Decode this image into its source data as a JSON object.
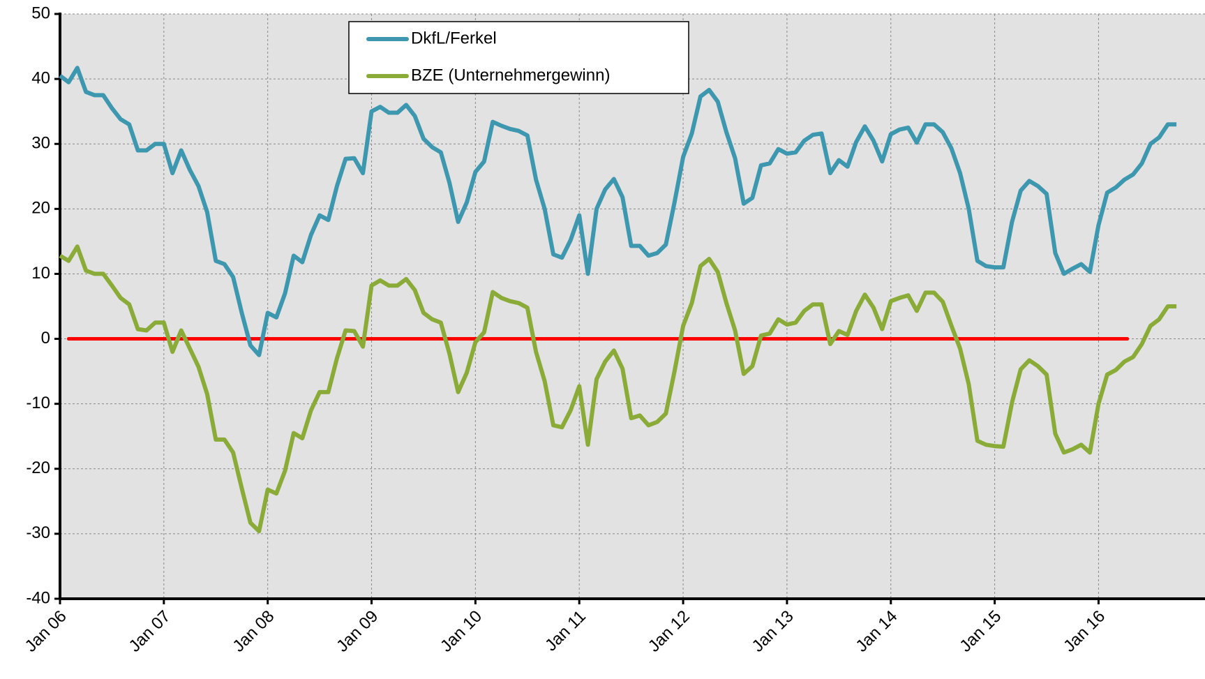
{
  "chart_data": {
    "type": "line",
    "categories": [
      "Jan 06",
      null,
      null,
      null,
      null,
      null,
      null,
      null,
      null,
      null,
      null,
      null,
      "Jan 07",
      null,
      null,
      null,
      null,
      null,
      null,
      null,
      null,
      null,
      null,
      null,
      "Jan 08",
      null,
      null,
      null,
      null,
      null,
      null,
      null,
      null,
      null,
      null,
      null,
      "Jan 09",
      null,
      null,
      null,
      null,
      null,
      null,
      null,
      null,
      null,
      null,
      null,
      "Jan 10",
      null,
      null,
      null,
      null,
      null,
      null,
      null,
      null,
      null,
      null,
      null,
      "Jan 11",
      null,
      null,
      null,
      null,
      null,
      null,
      null,
      null,
      null,
      null,
      null,
      "Jan 12",
      null,
      null,
      null,
      null,
      null,
      null,
      null,
      null,
      null,
      null,
      null,
      "Jan 13",
      null,
      null,
      null,
      null,
      null,
      null,
      null,
      null,
      null,
      null,
      null,
      "Jan 14",
      null,
      null,
      null,
      null,
      null,
      null,
      null,
      null,
      null,
      null,
      null,
      "Jan 15",
      null,
      null,
      null,
      null,
      null,
      null,
      null,
      null,
      null,
      null,
      null,
      "Jan 16",
      null,
      null,
      null,
      null,
      null,
      null,
      null,
      null,
      null
    ],
    "series": [
      {
        "name": "DkfL/Ferkel",
        "color": "#3d97ae",
        "values": [
          40.5,
          39.5,
          41.7,
          38,
          37.5,
          37.5,
          35.5,
          33.8,
          33,
          29,
          29,
          30,
          30,
          25.5,
          29,
          26,
          23.5,
          19.5,
          12,
          11.5,
          9.5,
          4,
          -1,
          -2.5,
          4,
          3.3,
          7,
          12.8,
          11.8,
          16,
          19,
          18.3,
          23.5,
          27.7,
          27.8,
          25.5,
          35,
          35.7,
          34.8,
          34.8,
          36,
          34.3,
          30.8,
          29.5,
          28.7,
          24,
          18,
          21,
          25.7,
          27.3,
          33.4,
          32.8,
          32.3,
          32,
          31.3,
          24.5,
          20,
          13,
          12.5,
          15.2,
          19,
          10,
          20,
          23,
          24.6,
          21.8,
          14.3,
          14.3,
          12.8,
          13.2,
          14.5,
          21,
          28,
          31.6,
          37.3,
          38.3,
          36.5,
          31.8,
          27.8,
          20.8,
          21.7,
          26.7,
          27,
          29.2,
          28.5,
          28.7,
          30.5,
          31.4,
          31.6,
          25.5,
          27.5,
          26.5,
          30.3,
          32.7,
          30.5,
          27.3,
          31.5,
          32.2,
          32.5,
          30.2,
          33,
          33,
          31.8,
          29.3,
          25.5,
          20,
          12,
          11.2,
          11,
          11,
          18,
          22.8,
          24.3,
          23.5,
          22.3,
          13.2,
          10,
          10.8,
          11.5,
          10.3,
          17.5,
          22.5,
          23.3,
          24.5,
          25.3,
          27,
          30,
          31,
          33,
          33
        ]
      },
      {
        "name": "BZE (Unternehmergewinn)",
        "color": "#8aab37",
        "values": [
          12.8,
          12,
          14.2,
          10.5,
          10,
          10,
          8.2,
          6.3,
          5.3,
          1.5,
          1.3,
          2.5,
          2.5,
          -2,
          1.3,
          -1.5,
          -4.3,
          -8.5,
          -15.5,
          -15.5,
          -17.5,
          -23,
          -28.3,
          -29.6,
          -23.2,
          -23.8,
          -20.3,
          -14.5,
          -15.3,
          -11,
          -8.2,
          -8.2,
          -3,
          1.3,
          1.2,
          -1.2,
          8.2,
          9,
          8.2,
          8.2,
          9.2,
          7.5,
          4,
          3,
          2.5,
          -2.3,
          -8.2,
          -5.2,
          -0.5,
          1,
          7.2,
          6.3,
          5.8,
          5.5,
          4.8,
          -2,
          -6.5,
          -13.3,
          -13.6,
          -11,
          -7.3,
          -16.3,
          -6.2,
          -3.5,
          -1.8,
          -4.6,
          -12.2,
          -11.8,
          -13.3,
          -12.8,
          -11.5,
          -5,
          2,
          5.5,
          11.2,
          12.3,
          10.3,
          5.5,
          1.3,
          -5.4,
          -4.2,
          0.5,
          0.8,
          3,
          2.2,
          2.5,
          4.3,
          5.3,
          5.3,
          -0.8,
          1.2,
          0.6,
          4.3,
          6.8,
          4.8,
          1.5,
          5.8,
          6.3,
          6.7,
          4.3,
          7.1,
          7.1,
          5.7,
          2,
          -1.5,
          -7,
          -15.7,
          -16.3,
          -16.5,
          -16.6,
          -9.8,
          -4.7,
          -3.3,
          -4.2,
          -5.5,
          -14.6,
          -17.5,
          -17,
          -16.3,
          -17.5,
          -10,
          -5.5,
          -4.8,
          -3.5,
          -2.8,
          -0.8,
          2,
          3,
          5,
          5
        ]
      }
    ],
    "hline": {
      "value": 0,
      "color": "#ff0000"
    },
    "ylim": [
      -40,
      50
    ],
    "yticks": [
      -40,
      -30,
      -20,
      -10,
      0,
      10,
      20,
      30,
      40,
      50
    ],
    "grid": true
  }
}
